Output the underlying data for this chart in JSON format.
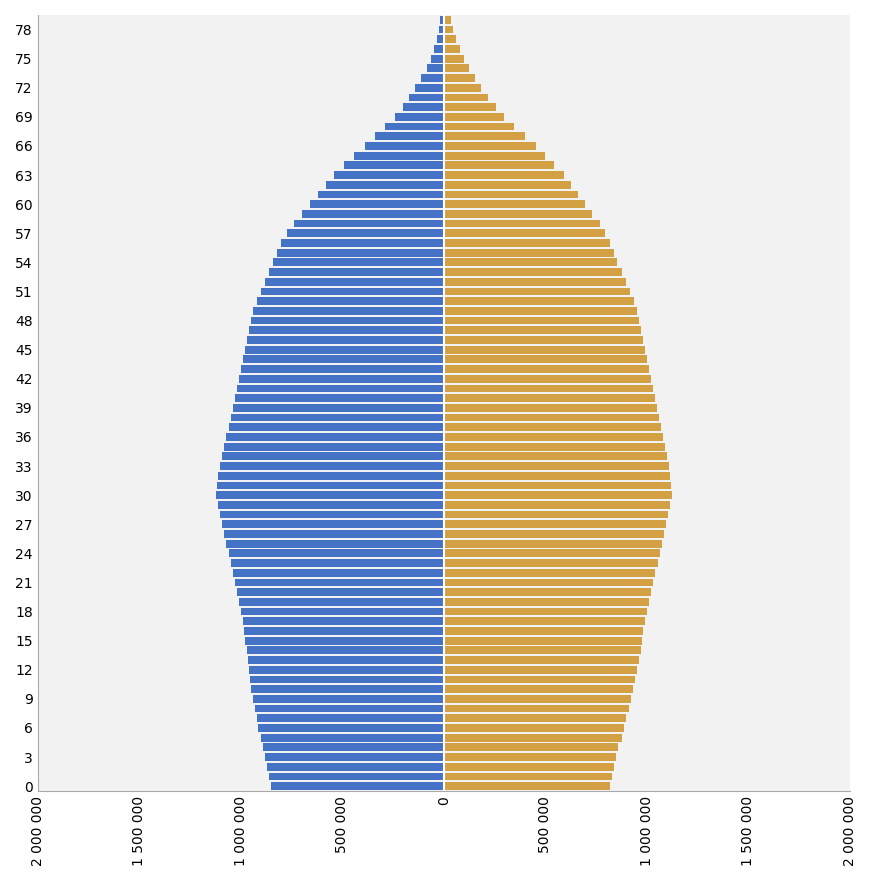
{
  "ages": [
    0,
    1,
    2,
    3,
    4,
    5,
    6,
    7,
    8,
    9,
    10,
    11,
    12,
    13,
    14,
    15,
    16,
    17,
    18,
    19,
    20,
    21,
    22,
    23,
    24,
    25,
    26,
    27,
    28,
    29,
    30,
    31,
    32,
    33,
    34,
    35,
    36,
    37,
    38,
    39,
    40,
    41,
    42,
    43,
    44,
    45,
    46,
    47,
    48,
    49,
    50,
    51,
    52,
    53,
    54,
    55,
    56,
    57,
    58,
    59,
    60,
    61,
    62,
    63,
    64,
    65,
    66,
    67,
    68,
    69,
    70,
    71,
    72,
    73,
    74,
    75,
    76,
    77,
    78,
    79
  ],
  "male": [
    850000,
    860000,
    870000,
    880000,
    890000,
    900000,
    915000,
    920000,
    930000,
    940000,
    950000,
    955000,
    960000,
    965000,
    970000,
    980000,
    985000,
    990000,
    1000000,
    1010000,
    1020000,
    1030000,
    1040000,
    1050000,
    1060000,
    1070000,
    1080000,
    1090000,
    1100000,
    1110000,
    1120000,
    1115000,
    1110000,
    1100000,
    1090000,
    1080000,
    1070000,
    1060000,
    1050000,
    1040000,
    1030000,
    1020000,
    1010000,
    1000000,
    990000,
    980000,
    970000,
    960000,
    950000,
    940000,
    920000,
    900000,
    880000,
    860000,
    840000,
    820000,
    800000,
    770000,
    740000,
    700000,
    660000,
    620000,
    580000,
    540000,
    490000,
    440000,
    390000,
    340000,
    290000,
    240000,
    200000,
    170000,
    140000,
    110000,
    85000,
    65000,
    48000,
    35000,
    25000,
    18000
  ],
  "female": [
    820000,
    830000,
    840000,
    850000,
    860000,
    875000,
    885000,
    895000,
    910000,
    920000,
    930000,
    940000,
    950000,
    960000,
    970000,
    975000,
    980000,
    990000,
    1000000,
    1010000,
    1020000,
    1030000,
    1040000,
    1055000,
    1065000,
    1075000,
    1085000,
    1095000,
    1105000,
    1115000,
    1125000,
    1120000,
    1115000,
    1110000,
    1100000,
    1090000,
    1080000,
    1070000,
    1060000,
    1050000,
    1040000,
    1030000,
    1020000,
    1010000,
    1000000,
    990000,
    980000,
    970000,
    960000,
    950000,
    935000,
    915000,
    895000,
    875000,
    855000,
    840000,
    820000,
    795000,
    768000,
    730000,
    695000,
    660000,
    625000,
    590000,
    545000,
    500000,
    452000,
    400000,
    348000,
    296000,
    255000,
    218000,
    185000,
    155000,
    125000,
    100000,
    78000,
    60000,
    45000,
    34000
  ],
  "blue_color": "#4472C4",
  "orange_color": "#D4A044",
  "background_color": "#F2F2F2",
  "xlim": [
    -2000000,
    2000000
  ],
  "ytick_step": 3,
  "bar_height": 0.8
}
